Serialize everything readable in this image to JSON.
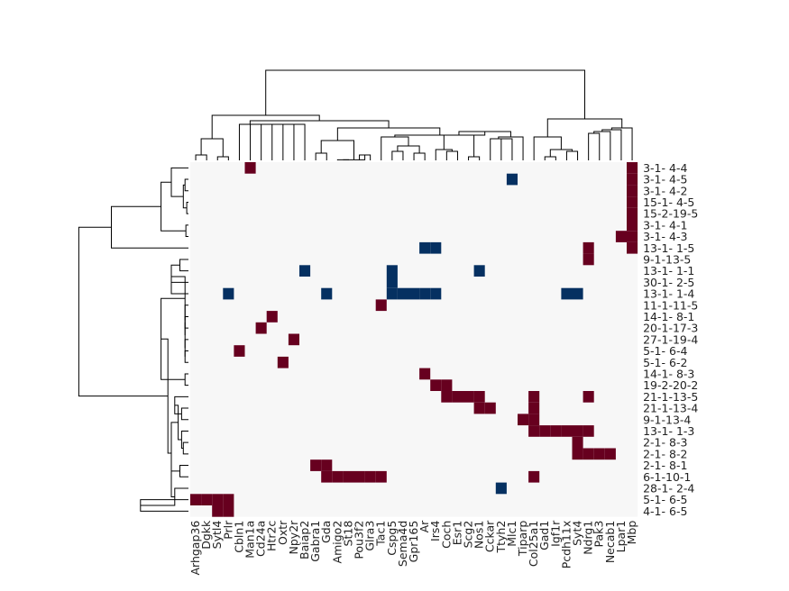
{
  "chart_data": {
    "type": "heatmap",
    "title": "",
    "xlabel": "",
    "ylabel": "",
    "grid": false,
    "legend": "none",
    "colors": {
      "background": "#f7f7f7",
      "positive": "#67001f",
      "negative": "#053061",
      "dendrogram": "#000000"
    },
    "columns": [
      "Arhgap36",
      "Dgkk",
      "Sytl4",
      "Prlr",
      "Cbln1",
      "Man1a",
      "Cd24a",
      "Htr2c",
      "Oxtr",
      "Npy2r",
      "Baiap2",
      "Gabra1",
      "Gda",
      "Amigo2",
      "St18",
      "Pou3f2",
      "Glra3",
      "Tac1",
      "Cspg5",
      "Sema4d",
      "Gpr165",
      "Ar",
      "Irs4",
      "Coch",
      "Esr1",
      "Scg2",
      "Nos1",
      "Cckar",
      "Ttyh2",
      "Mlc1",
      "Tiparp",
      "Col25a1",
      "Gad1",
      "Igf1r",
      "Pcdh11x",
      "Syt4",
      "Ndrg1",
      "Pak3",
      "Necab1",
      "Lpar1",
      "Mbp"
    ],
    "rows": [
      "3-1- 4-4",
      "3-1- 4-5",
      "3-1- 4-2",
      "15-1- 4-5",
      "15-2-19-5",
      "3-1- 4-1",
      "3-1- 4-3",
      "13-1- 1-5",
      "9-1-13-5",
      "13-1- 1-1",
      "30-1- 2-5",
      "13-1- 1-4",
      "11-1-11-5",
      "14-1- 8-1",
      "20-1-17-3",
      "27-1-19-4",
      "5-1- 6-4",
      "5-1- 6-2",
      "14-1- 8-3",
      "19-2-20-2",
      "21-1-13-5",
      "21-1-13-4",
      "9-1-13-4",
      "13-1- 1-3",
      "2-1- 8-3",
      "2-1- 8-2",
      "2-1- 8-1",
      "6-1-10-1",
      "28-1- 2-4",
      "5-1- 6-5",
      "4-1- 6-5"
    ],
    "positive_cells": [
      [
        0,
        5
      ],
      [
        0,
        40
      ],
      [
        1,
        40
      ],
      [
        2,
        40
      ],
      [
        3,
        40
      ],
      [
        4,
        40
      ],
      [
        5,
        40
      ],
      [
        6,
        39
      ],
      [
        6,
        40
      ],
      [
        7,
        36
      ],
      [
        7,
        40
      ],
      [
        8,
        36
      ],
      [
        12,
        17
      ],
      [
        13,
        7
      ],
      [
        14,
        6
      ],
      [
        15,
        9
      ],
      [
        16,
        4
      ],
      [
        17,
        8
      ],
      [
        18,
        21
      ],
      [
        19,
        22
      ],
      [
        19,
        23
      ],
      [
        20,
        23
      ],
      [
        20,
        24
      ],
      [
        20,
        25
      ],
      [
        20,
        26
      ],
      [
        20,
        31
      ],
      [
        20,
        36
      ],
      [
        21,
        26
      ],
      [
        21,
        27
      ],
      [
        21,
        31
      ],
      [
        22,
        30
      ],
      [
        22,
        31
      ],
      [
        23,
        31
      ],
      [
        23,
        32
      ],
      [
        23,
        33
      ],
      [
        23,
        34
      ],
      [
        23,
        35
      ],
      [
        23,
        36
      ],
      [
        24,
        35
      ],
      [
        25,
        35
      ],
      [
        25,
        36
      ],
      [
        25,
        37
      ],
      [
        25,
        38
      ],
      [
        26,
        11
      ],
      [
        26,
        12
      ],
      [
        27,
        12
      ],
      [
        27,
        13
      ],
      [
        27,
        14
      ],
      [
        27,
        15
      ],
      [
        27,
        16
      ],
      [
        27,
        17
      ],
      [
        27,
        31
      ],
      [
        29,
        0
      ],
      [
        29,
        1
      ],
      [
        29,
        2
      ],
      [
        29,
        3
      ],
      [
        30,
        2
      ],
      [
        30,
        3
      ]
    ],
    "negative_cells": [
      [
        1,
        29
      ],
      [
        7,
        21
      ],
      [
        7,
        22
      ],
      [
        9,
        10
      ],
      [
        9,
        18
      ],
      [
        9,
        26
      ],
      [
        10,
        18
      ],
      [
        11,
        3
      ],
      [
        11,
        12
      ],
      [
        11,
        18
      ],
      [
        11,
        19
      ],
      [
        11,
        20
      ],
      [
        11,
        21
      ],
      [
        11,
        22
      ],
      [
        11,
        34
      ],
      [
        11,
        35
      ],
      [
        28,
        28
      ]
    ]
  }
}
